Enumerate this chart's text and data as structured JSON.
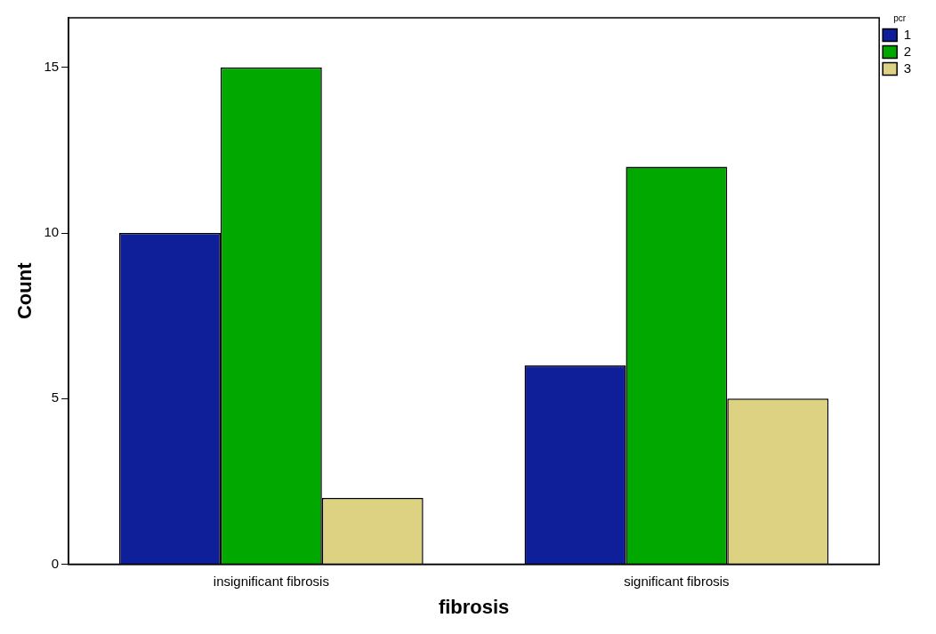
{
  "chart_data": {
    "type": "bar",
    "xlabel": "fibrosis",
    "ylabel": "Count",
    "legend_title": "pcr",
    "categories": [
      "insignificant fibrosis",
      "significant fibrosis"
    ],
    "series": [
      {
        "name": "1",
        "color": "#0f1f99",
        "values": [
          10,
          6
        ]
      },
      {
        "name": "2",
        "color": "#00a800",
        "values": [
          15,
          12
        ]
      },
      {
        "name": "3",
        "color": "#dcd282",
        "values": [
          2,
          5
        ]
      }
    ],
    "ylim": [
      0,
      16.5
    ],
    "yticks": [
      0,
      5,
      10,
      15
    ],
    "grid": false,
    "legend": "top right"
  }
}
